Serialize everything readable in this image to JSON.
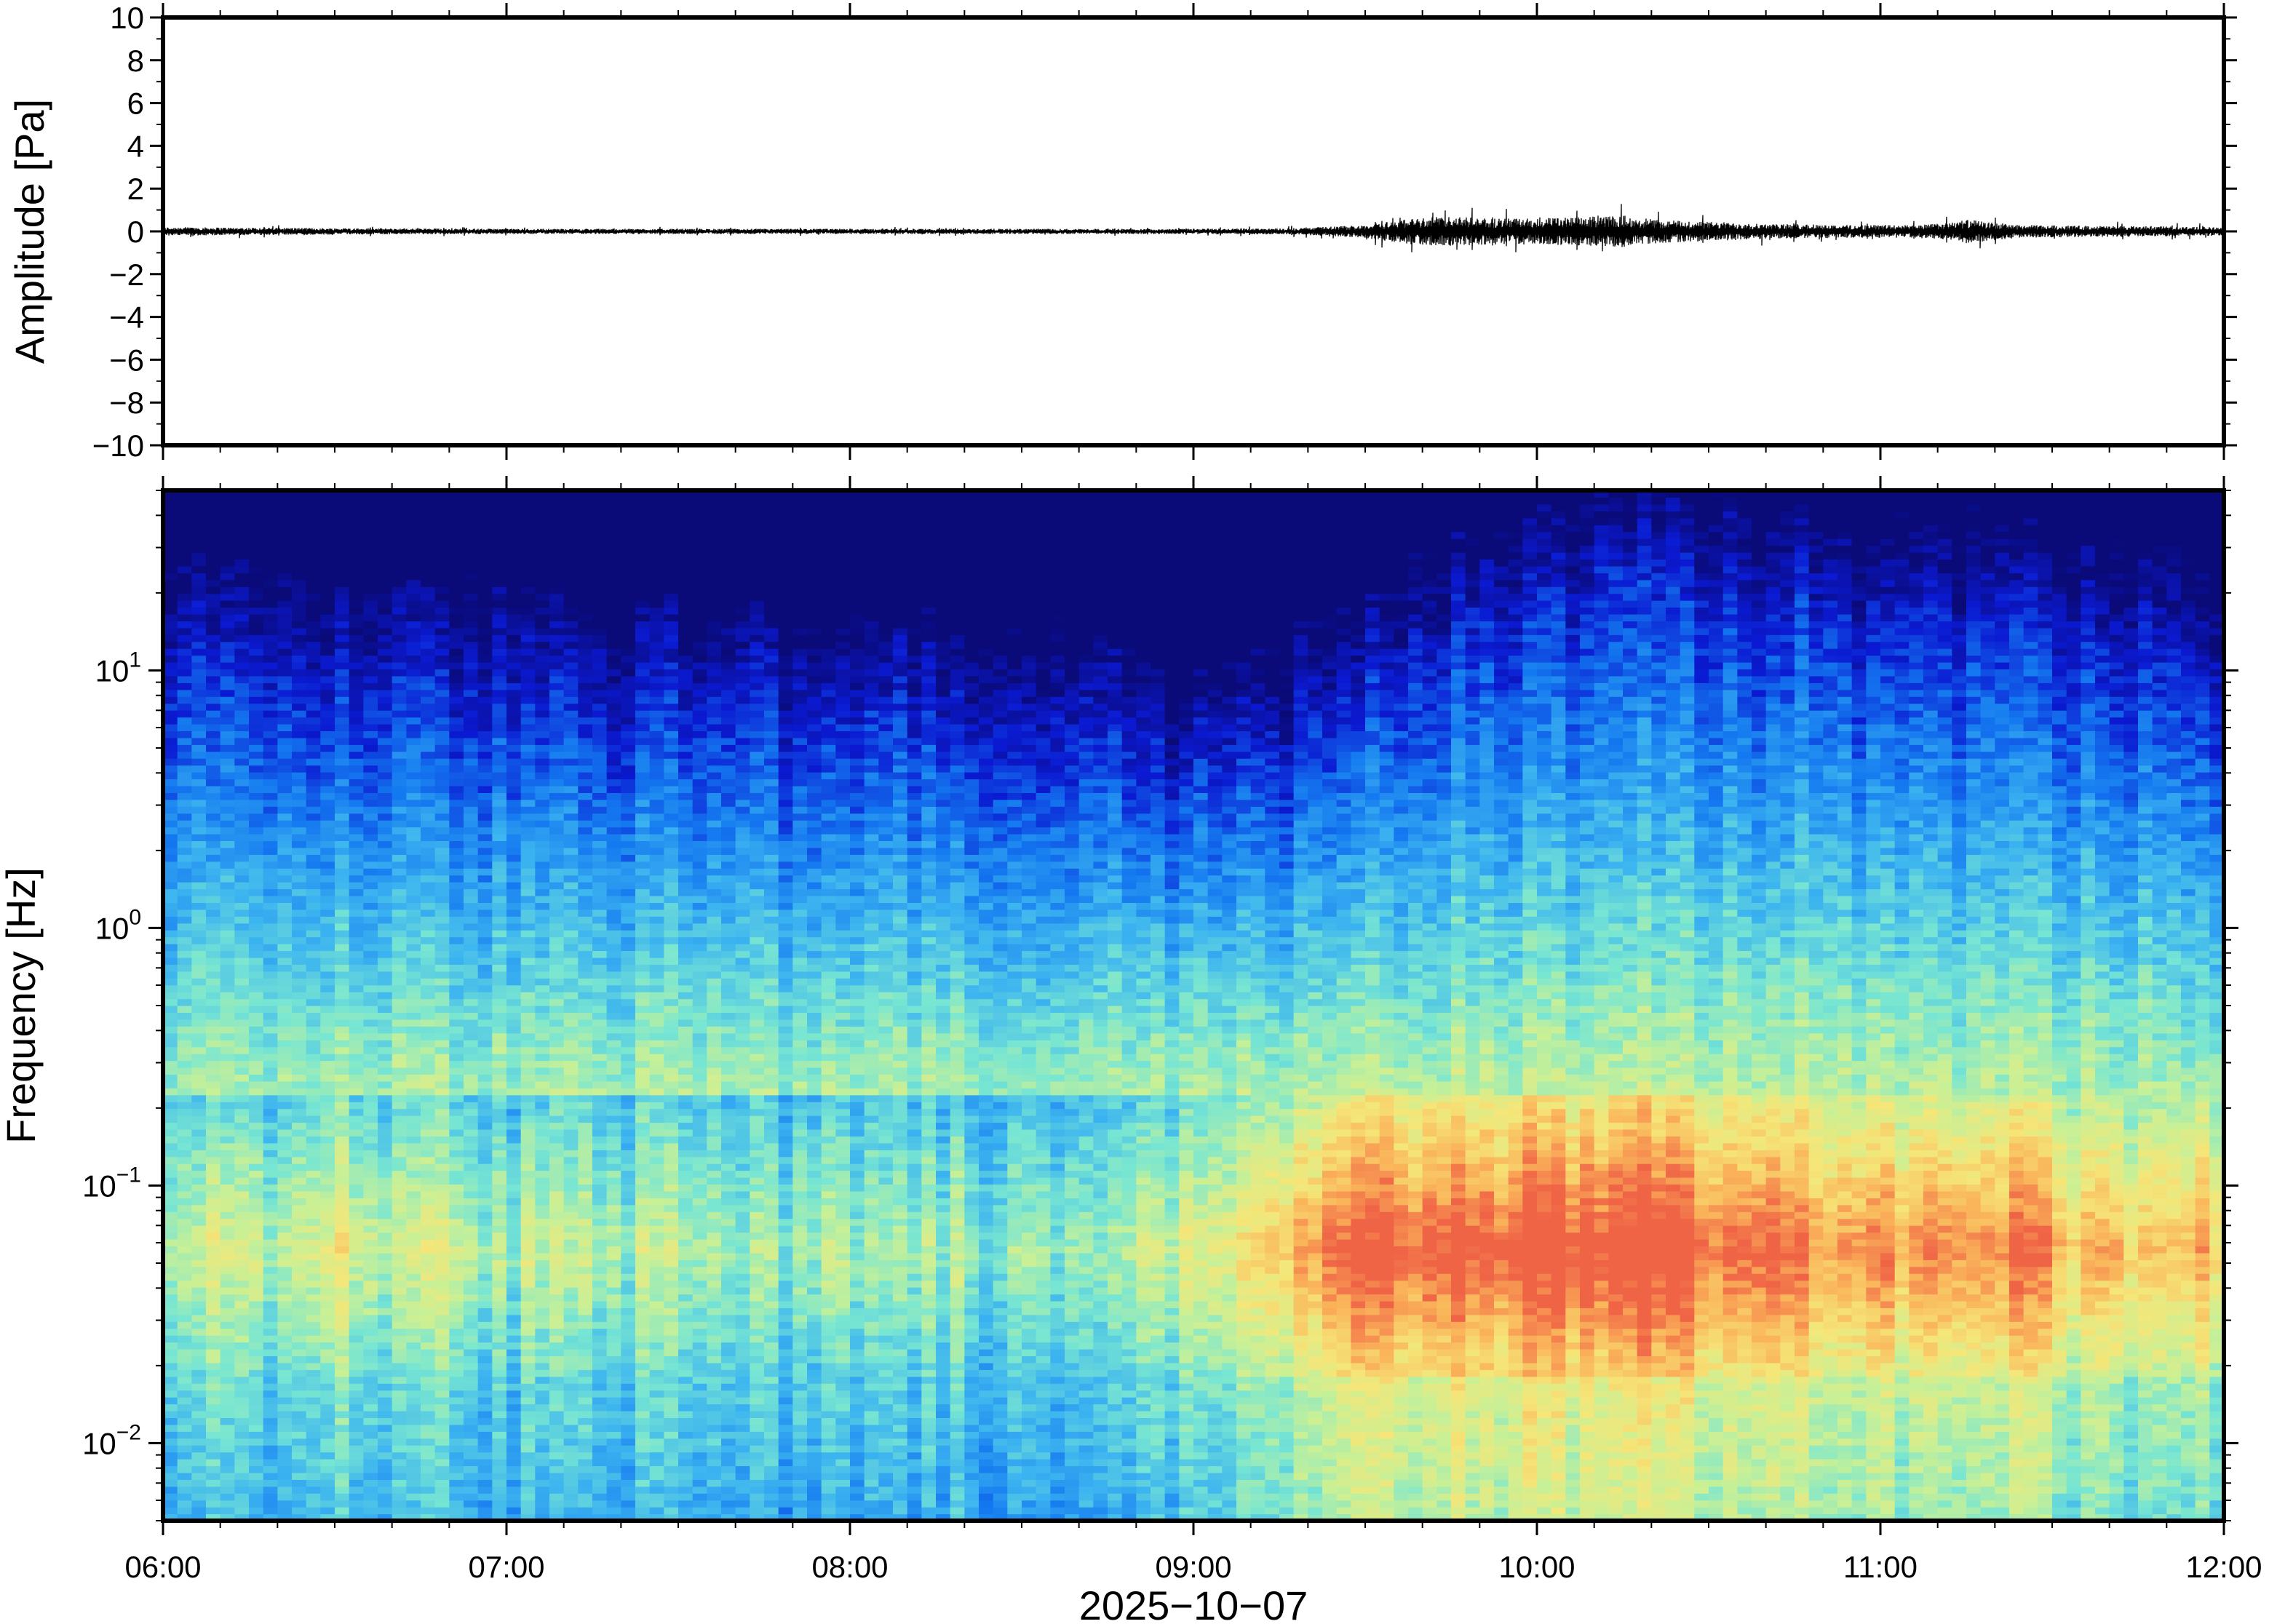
{
  "chart_data": [
    {
      "type": "line",
      "ylabel": "Amplitude [Pa]",
      "ylim": [
        -10,
        10
      ],
      "yticks": [
        10,
        8,
        6,
        4,
        2,
        0,
        -2,
        -4,
        -6,
        -8,
        -10
      ],
      "ytick_labels": [
        "10",
        "8",
        "6",
        "4",
        "2",
        "0",
        "−2",
        "−4",
        "−6",
        "−8",
        "−10"
      ],
      "xlim": [
        "06:00",
        "12:00"
      ],
      "envelope": {
        "time_hours": [
          6.0,
          6.5,
          7.0,
          7.5,
          8.0,
          8.5,
          9.0,
          9.3,
          9.5,
          9.6,
          9.7,
          9.9,
          10.1,
          10.25,
          10.35,
          10.5,
          10.7,
          10.9,
          11.1,
          11.2,
          11.25,
          11.4,
          11.7,
          12.0
        ],
        "amplitude_pa": [
          0.2,
          0.15,
          0.12,
          0.12,
          0.12,
          0.12,
          0.12,
          0.15,
          0.3,
          0.55,
          0.7,
          0.6,
          0.65,
          0.75,
          0.55,
          0.45,
          0.35,
          0.3,
          0.3,
          0.4,
          0.55,
          0.3,
          0.25,
          0.2
        ]
      }
    },
    {
      "type": "heatmap",
      "ylabel": "Frequency [Hz]",
      "xlabel": "2025−10−07",
      "yscale": "log",
      "ylim": [
        0.005,
        50
      ],
      "yticks": [
        0.01,
        0.1,
        1,
        10
      ],
      "ytick_labels": [
        {
          "base": "10",
          "exp": "−2"
        },
        {
          "base": "10",
          "exp": "−1"
        },
        {
          "base": "10",
          "exp": "0"
        },
        {
          "base": "10",
          "exp": "1"
        }
      ],
      "xticks": [
        "06:00",
        "07:00",
        "08:00",
        "09:00",
        "10:00",
        "11:00",
        "12:00"
      ],
      "colormap": [
        "#0a0a78",
        "#0b1ad2",
        "#1478f0",
        "#3cb4f0",
        "#78e6d2",
        "#c8f096",
        "#f5e678",
        "#fab45a",
        "#f06446"
      ],
      "intensity_profile": {
        "time_hours": [
          6.0,
          6.5,
          7.0,
          7.5,
          8.0,
          8.5,
          8.9,
          9.2,
          9.45,
          9.7,
          10.0,
          10.3,
          10.6,
          10.9,
          11.25,
          11.6,
          12.0
        ],
        "low_band_intensity": [
          0.6,
          0.6,
          0.55,
          0.5,
          0.5,
          0.5,
          0.55,
          0.72,
          0.92,
          1.0,
          1.0,
          1.0,
          0.92,
          0.85,
          0.92,
          0.82,
          0.8
        ],
        "upper_cutoff_hz": [
          12,
          11,
          9,
          8,
          7,
          7,
          4.5,
          5,
          8,
          14,
          20,
          26,
          20,
          16,
          18,
          14,
          12
        ]
      }
    }
  ]
}
